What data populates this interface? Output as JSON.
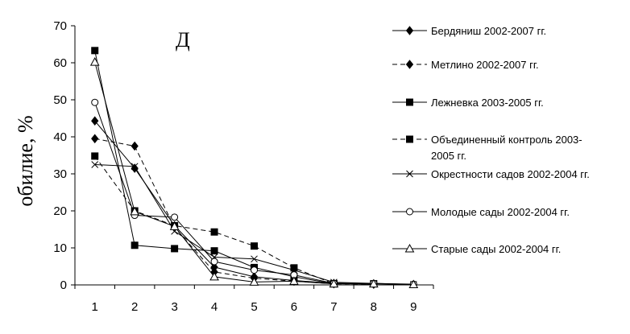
{
  "chart_data": {
    "type": "line",
    "panel_label": "Д",
    "ylabel": "обилие, %",
    "xlabel": "",
    "x": [
      1,
      2,
      3,
      4,
      5,
      6,
      7,
      8,
      9
    ],
    "x_tick_labels": [
      "1",
      "2",
      "3",
      "4",
      "5",
      "6",
      "7",
      "8",
      "9"
    ],
    "ylim": [
      0,
      70
    ],
    "y_ticks": [
      0,
      10,
      20,
      30,
      40,
      50,
      60,
      70
    ],
    "y_tick_labels": [
      "0",
      "10",
      "20",
      "30",
      "40",
      "50",
      "60",
      "70"
    ],
    "grid": false,
    "legend_position": "right",
    "series": [
      {
        "name": "Бердяниш 2002-2007 гг.",
        "name_lines": [
          "Бердяниш 2002-2007 гг."
        ],
        "marker": "diamond",
        "dash": "solid",
        "color": "#000000",
        "values": [
          44.3,
          31.5,
          16.0,
          4.8,
          2.2,
          1.2,
          0.4,
          0.2,
          null
        ]
      },
      {
        "name": "Метлино 2002-2007 гг.",
        "name_lines": [
          "Метлино 2002-2007 гг."
        ],
        "marker": "diamond",
        "dash": "dashed",
        "color": "#000000",
        "values": [
          39.5,
          37.5,
          15.5,
          3.5,
          1.8,
          1.0,
          0.3,
          0.2,
          null
        ]
      },
      {
        "name": "Лежневка 2003-2005 гг.",
        "name_lines": [
          "Лежневка 2003-2005 гг."
        ],
        "marker": "square",
        "dash": "solid",
        "color": "#000000",
        "values": [
          63.3,
          10.7,
          9.8,
          9.2,
          4.7,
          2.2,
          0.3,
          null,
          null
        ]
      },
      {
        "name": "Объединенный контроль 2003-2005 гг.",
        "name_lines": [
          "Объединенный контроль 2003-",
          "2005 гг."
        ],
        "marker": "square",
        "dash": "dashed",
        "color": "#000000",
        "values": [
          34.8,
          20.0,
          16.0,
          14.3,
          10.5,
          4.6,
          0.3,
          0.3,
          null
        ]
      },
      {
        "name": "Окрестности садов 2002-2004 гг.",
        "name_lines": [
          "Окрестности садов 2002-2004 гг."
        ],
        "marker": "x",
        "dash": "solid",
        "color": "#000000",
        "values": [
          32.5,
          32.0,
          14.5,
          7.5,
          7.0,
          4.0,
          0.7,
          0.4,
          0.1
        ]
      },
      {
        "name": "Молодые сады 2002-2004 гг.",
        "name_lines": [
          "Молодые сады 2002-2004 гг."
        ],
        "marker": "circle",
        "dash": "solid",
        "color": "#000000",
        "values": [
          49.3,
          18.8,
          18.3,
          6.3,
          4.0,
          2.7,
          0.4,
          0.4,
          0.2
        ]
      },
      {
        "name": "Старые сады 2002-2004 гг.",
        "name_lines": [
          "Старые сады 2002-2004 гг."
        ],
        "marker": "triangle",
        "dash": "solid",
        "color": "#000000",
        "values": [
          60.2,
          19.8,
          15.8,
          2.2,
          0.8,
          1.0,
          0.3,
          0.3,
          0.1
        ]
      }
    ]
  }
}
